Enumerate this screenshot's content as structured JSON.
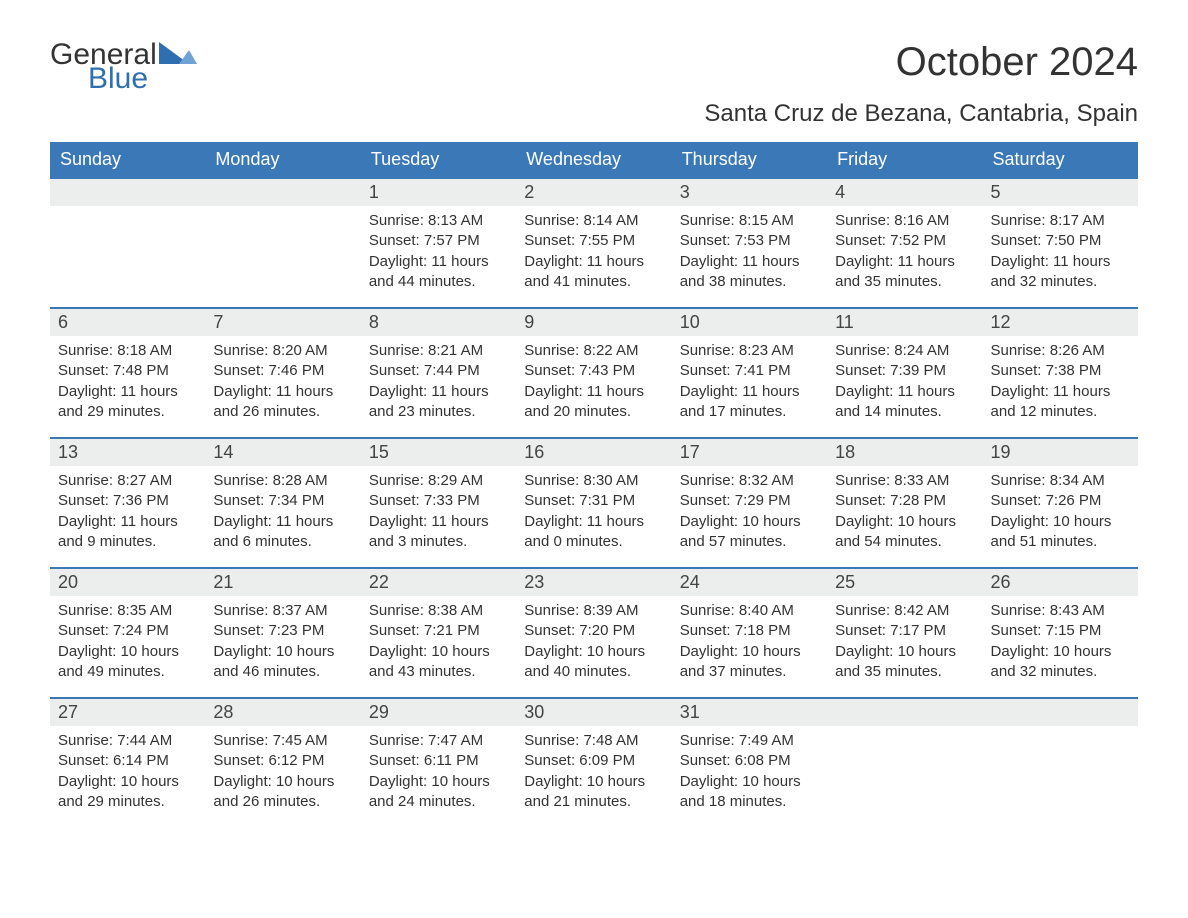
{
  "logo": {
    "text_general": "General",
    "text_blue": "Blue",
    "tri_color": "#2f6fb0"
  },
  "title": "October 2024",
  "subtitle": "Santa Cruz de Bezana, Cantabria, Spain",
  "colors": {
    "header_bg": "#3a78b8",
    "header_text": "#ffffff",
    "daynum_bg": "#eceded",
    "week_border": "#3a78b8",
    "body_text": "#333333",
    "logo_blue": "#2f6fb0"
  },
  "typography": {
    "title_fontsize": 40,
    "subtitle_fontsize": 24,
    "header_fontsize": 18,
    "daynum_fontsize": 18,
    "body_fontsize": 15,
    "logo_fontsize": 30,
    "font_family": "Arial"
  },
  "day_labels": [
    "Sunday",
    "Monday",
    "Tuesday",
    "Wednesday",
    "Thursday",
    "Friday",
    "Saturday"
  ],
  "weeks": [
    [
      {
        "num": "",
        "sunrise": "",
        "sunset": "",
        "daylight": ""
      },
      {
        "num": "",
        "sunrise": "",
        "sunset": "",
        "daylight": ""
      },
      {
        "num": "1",
        "sunrise": "Sunrise: 8:13 AM",
        "sunset": "Sunset: 7:57 PM",
        "daylight": "Daylight: 11 hours and 44 minutes."
      },
      {
        "num": "2",
        "sunrise": "Sunrise: 8:14 AM",
        "sunset": "Sunset: 7:55 PM",
        "daylight": "Daylight: 11 hours and 41 minutes."
      },
      {
        "num": "3",
        "sunrise": "Sunrise: 8:15 AM",
        "sunset": "Sunset: 7:53 PM",
        "daylight": "Daylight: 11 hours and 38 minutes."
      },
      {
        "num": "4",
        "sunrise": "Sunrise: 8:16 AM",
        "sunset": "Sunset: 7:52 PM",
        "daylight": "Daylight: 11 hours and 35 minutes."
      },
      {
        "num": "5",
        "sunrise": "Sunrise: 8:17 AM",
        "sunset": "Sunset: 7:50 PM",
        "daylight": "Daylight: 11 hours and 32 minutes."
      }
    ],
    [
      {
        "num": "6",
        "sunrise": "Sunrise: 8:18 AM",
        "sunset": "Sunset: 7:48 PM",
        "daylight": "Daylight: 11 hours and 29 minutes."
      },
      {
        "num": "7",
        "sunrise": "Sunrise: 8:20 AM",
        "sunset": "Sunset: 7:46 PM",
        "daylight": "Daylight: 11 hours and 26 minutes."
      },
      {
        "num": "8",
        "sunrise": "Sunrise: 8:21 AM",
        "sunset": "Sunset: 7:44 PM",
        "daylight": "Daylight: 11 hours and 23 minutes."
      },
      {
        "num": "9",
        "sunrise": "Sunrise: 8:22 AM",
        "sunset": "Sunset: 7:43 PM",
        "daylight": "Daylight: 11 hours and 20 minutes."
      },
      {
        "num": "10",
        "sunrise": "Sunrise: 8:23 AM",
        "sunset": "Sunset: 7:41 PM",
        "daylight": "Daylight: 11 hours and 17 minutes."
      },
      {
        "num": "11",
        "sunrise": "Sunrise: 8:24 AM",
        "sunset": "Sunset: 7:39 PM",
        "daylight": "Daylight: 11 hours and 14 minutes."
      },
      {
        "num": "12",
        "sunrise": "Sunrise: 8:26 AM",
        "sunset": "Sunset: 7:38 PM",
        "daylight": "Daylight: 11 hours and 12 minutes."
      }
    ],
    [
      {
        "num": "13",
        "sunrise": "Sunrise: 8:27 AM",
        "sunset": "Sunset: 7:36 PM",
        "daylight": "Daylight: 11 hours and 9 minutes."
      },
      {
        "num": "14",
        "sunrise": "Sunrise: 8:28 AM",
        "sunset": "Sunset: 7:34 PM",
        "daylight": "Daylight: 11 hours and 6 minutes."
      },
      {
        "num": "15",
        "sunrise": "Sunrise: 8:29 AM",
        "sunset": "Sunset: 7:33 PM",
        "daylight": "Daylight: 11 hours and 3 minutes."
      },
      {
        "num": "16",
        "sunrise": "Sunrise: 8:30 AM",
        "sunset": "Sunset: 7:31 PM",
        "daylight": "Daylight: 11 hours and 0 minutes."
      },
      {
        "num": "17",
        "sunrise": "Sunrise: 8:32 AM",
        "sunset": "Sunset: 7:29 PM",
        "daylight": "Daylight: 10 hours and 57 minutes."
      },
      {
        "num": "18",
        "sunrise": "Sunrise: 8:33 AM",
        "sunset": "Sunset: 7:28 PM",
        "daylight": "Daylight: 10 hours and 54 minutes."
      },
      {
        "num": "19",
        "sunrise": "Sunrise: 8:34 AM",
        "sunset": "Sunset: 7:26 PM",
        "daylight": "Daylight: 10 hours and 51 minutes."
      }
    ],
    [
      {
        "num": "20",
        "sunrise": "Sunrise: 8:35 AM",
        "sunset": "Sunset: 7:24 PM",
        "daylight": "Daylight: 10 hours and 49 minutes."
      },
      {
        "num": "21",
        "sunrise": "Sunrise: 8:37 AM",
        "sunset": "Sunset: 7:23 PM",
        "daylight": "Daylight: 10 hours and 46 minutes."
      },
      {
        "num": "22",
        "sunrise": "Sunrise: 8:38 AM",
        "sunset": "Sunset: 7:21 PM",
        "daylight": "Daylight: 10 hours and 43 minutes."
      },
      {
        "num": "23",
        "sunrise": "Sunrise: 8:39 AM",
        "sunset": "Sunset: 7:20 PM",
        "daylight": "Daylight: 10 hours and 40 minutes."
      },
      {
        "num": "24",
        "sunrise": "Sunrise: 8:40 AM",
        "sunset": "Sunset: 7:18 PM",
        "daylight": "Daylight: 10 hours and 37 minutes."
      },
      {
        "num": "25",
        "sunrise": "Sunrise: 8:42 AM",
        "sunset": "Sunset: 7:17 PM",
        "daylight": "Daylight: 10 hours and 35 minutes."
      },
      {
        "num": "26",
        "sunrise": "Sunrise: 8:43 AM",
        "sunset": "Sunset: 7:15 PM",
        "daylight": "Daylight: 10 hours and 32 minutes."
      }
    ],
    [
      {
        "num": "27",
        "sunrise": "Sunrise: 7:44 AM",
        "sunset": "Sunset: 6:14 PM",
        "daylight": "Daylight: 10 hours and 29 minutes."
      },
      {
        "num": "28",
        "sunrise": "Sunrise: 7:45 AM",
        "sunset": "Sunset: 6:12 PM",
        "daylight": "Daylight: 10 hours and 26 minutes."
      },
      {
        "num": "29",
        "sunrise": "Sunrise: 7:47 AM",
        "sunset": "Sunset: 6:11 PM",
        "daylight": "Daylight: 10 hours and 24 minutes."
      },
      {
        "num": "30",
        "sunrise": "Sunrise: 7:48 AM",
        "sunset": "Sunset: 6:09 PM",
        "daylight": "Daylight: 10 hours and 21 minutes."
      },
      {
        "num": "31",
        "sunrise": "Sunrise: 7:49 AM",
        "sunset": "Sunset: 6:08 PM",
        "daylight": "Daylight: 10 hours and 18 minutes."
      },
      {
        "num": "",
        "sunrise": "",
        "sunset": "",
        "daylight": ""
      },
      {
        "num": "",
        "sunrise": "",
        "sunset": "",
        "daylight": ""
      }
    ]
  ]
}
